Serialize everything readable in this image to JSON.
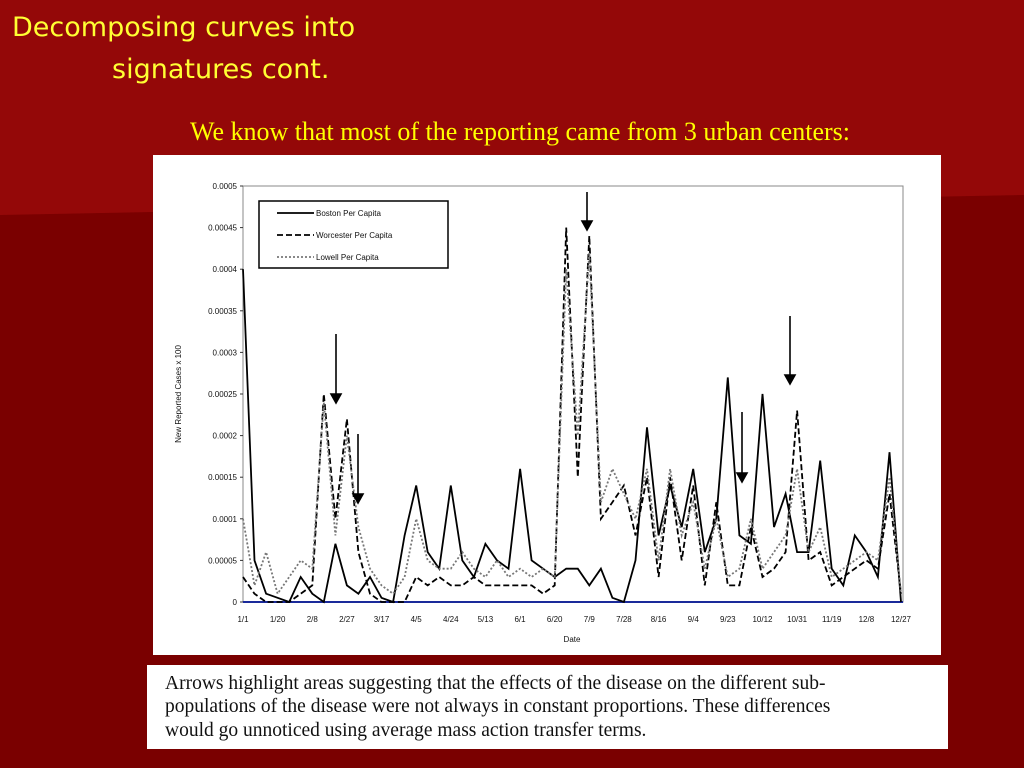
{
  "slide": {
    "title_lines": [
      "Decomposing curves into",
      "signatures cont."
    ],
    "subtitle": "We know that most of the reporting came from 3 urban centers:",
    "caption_lines": [
      "Arrows highlight areas suggesting that the effects of the disease on the different sub-",
      "populations of the disease were not always in constant proportions. These differences",
      "would go unnoticed using average mass action transfer terms."
    ]
  },
  "chart_data": {
    "type": "line",
    "x_label": "Date",
    "y_label": "New Reported Cases x 100",
    "categories": [
      "1/1",
      null,
      null,
      "1/20",
      null,
      null,
      "2/8",
      null,
      null,
      "2/27",
      null,
      null,
      "3/17",
      null,
      null,
      "4/5",
      null,
      null,
      "4/24",
      null,
      null,
      "5/13",
      null,
      null,
      "6/1",
      null,
      null,
      "6/20",
      null,
      null,
      "7/9",
      null,
      null,
      "7/28",
      null,
      null,
      "8/16",
      null,
      null,
      "9/4",
      null,
      null,
      "9/23",
      null,
      null,
      "10/12",
      null,
      null,
      "10/31",
      null,
      null,
      "11/19",
      null,
      null,
      "12/8",
      null,
      null,
      "12/27"
    ],
    "ylim": [
      0,
      0.0005
    ],
    "yticks": [
      0,
      5e-05,
      0.0001,
      0.00015,
      0.0002,
      0.00025,
      0.0003,
      0.00035,
      0.0004,
      0.00045,
      0.0005
    ],
    "legend": "upper left",
    "series": [
      {
        "name": "Boston Per Capita",
        "color": "#000000",
        "line_style": "solid",
        "values": [
          0.0004,
          5e-05,
          1e-05,
          5e-06,
          0,
          3e-05,
          1e-05,
          0,
          7e-05,
          2e-05,
          1e-05,
          3e-05,
          5e-06,
          0,
          8e-05,
          0.00014,
          6e-05,
          4e-05,
          0.00014,
          5e-05,
          3e-05,
          7e-05,
          5e-05,
          4e-05,
          0.00016,
          5e-05,
          4e-05,
          3e-05,
          4e-05,
          4e-05,
          2e-05,
          4e-05,
          5e-06,
          0,
          5e-05,
          0.00021,
          8e-05,
          0.00014,
          9e-05,
          0.00016,
          6e-05,
          0.0001,
          0.00027,
          8e-05,
          7e-05,
          0.00025,
          9e-05,
          0.00013,
          6e-05,
          6e-05,
          0.00017,
          4e-05,
          2e-05,
          8e-05,
          6e-05,
          3e-05,
          0.00018,
          0
        ]
      },
      {
        "name": "Worcester Per Capita",
        "color": "#000000",
        "line_style": "dashed",
        "values": [
          3e-05,
          1e-05,
          0,
          0,
          0,
          1e-05,
          2e-05,
          0.00025,
          0.0001,
          0.00022,
          6e-05,
          1e-05,
          0,
          0,
          0,
          3e-05,
          2e-05,
          3e-05,
          2e-05,
          2e-05,
          3e-05,
          2e-05,
          2e-05,
          2e-05,
          2e-05,
          2e-05,
          1e-05,
          2e-05,
          0.00045,
          0.00015,
          0.00044,
          0.0001,
          0.00012,
          0.00014,
          8e-05,
          0.00015,
          3e-05,
          0.00015,
          5e-05,
          0.00014,
          2e-05,
          0.00012,
          2e-05,
          2e-05,
          9e-05,
          3e-05,
          4e-05,
          6e-05,
          0.00023,
          5e-05,
          6e-05,
          2e-05,
          3e-05,
          4e-05,
          5e-05,
          4e-05,
          0.00013,
          1e-05
        ]
      },
      {
        "name": "Lowell Per Capita",
        "color": "#777777",
        "line_style": "dotted",
        "values": [
          0.0001,
          2e-05,
          6e-05,
          1e-05,
          3e-05,
          5e-05,
          4e-05,
          0.00024,
          8e-05,
          0.0002,
          9e-05,
          4e-05,
          2e-05,
          1e-05,
          3e-05,
          0.0001,
          5e-05,
          4e-05,
          4e-05,
          6e-05,
          4e-05,
          3e-05,
          5e-05,
          3e-05,
          4e-05,
          3e-05,
          4e-05,
          3e-05,
          0.0004,
          0.0002,
          0.00042,
          0.00012,
          0.00016,
          0.00013,
          0.0001,
          0.00016,
          5e-05,
          0.00016,
          8e-05,
          0.00012,
          4e-05,
          0.0001,
          3e-05,
          4e-05,
          0.0001,
          4e-05,
          6e-05,
          8e-05,
          0.00016,
          6e-05,
          9e-05,
          3e-05,
          4e-05,
          5e-05,
          6e-05,
          5e-05,
          0.00015,
          1e-05
        ]
      }
    ]
  }
}
